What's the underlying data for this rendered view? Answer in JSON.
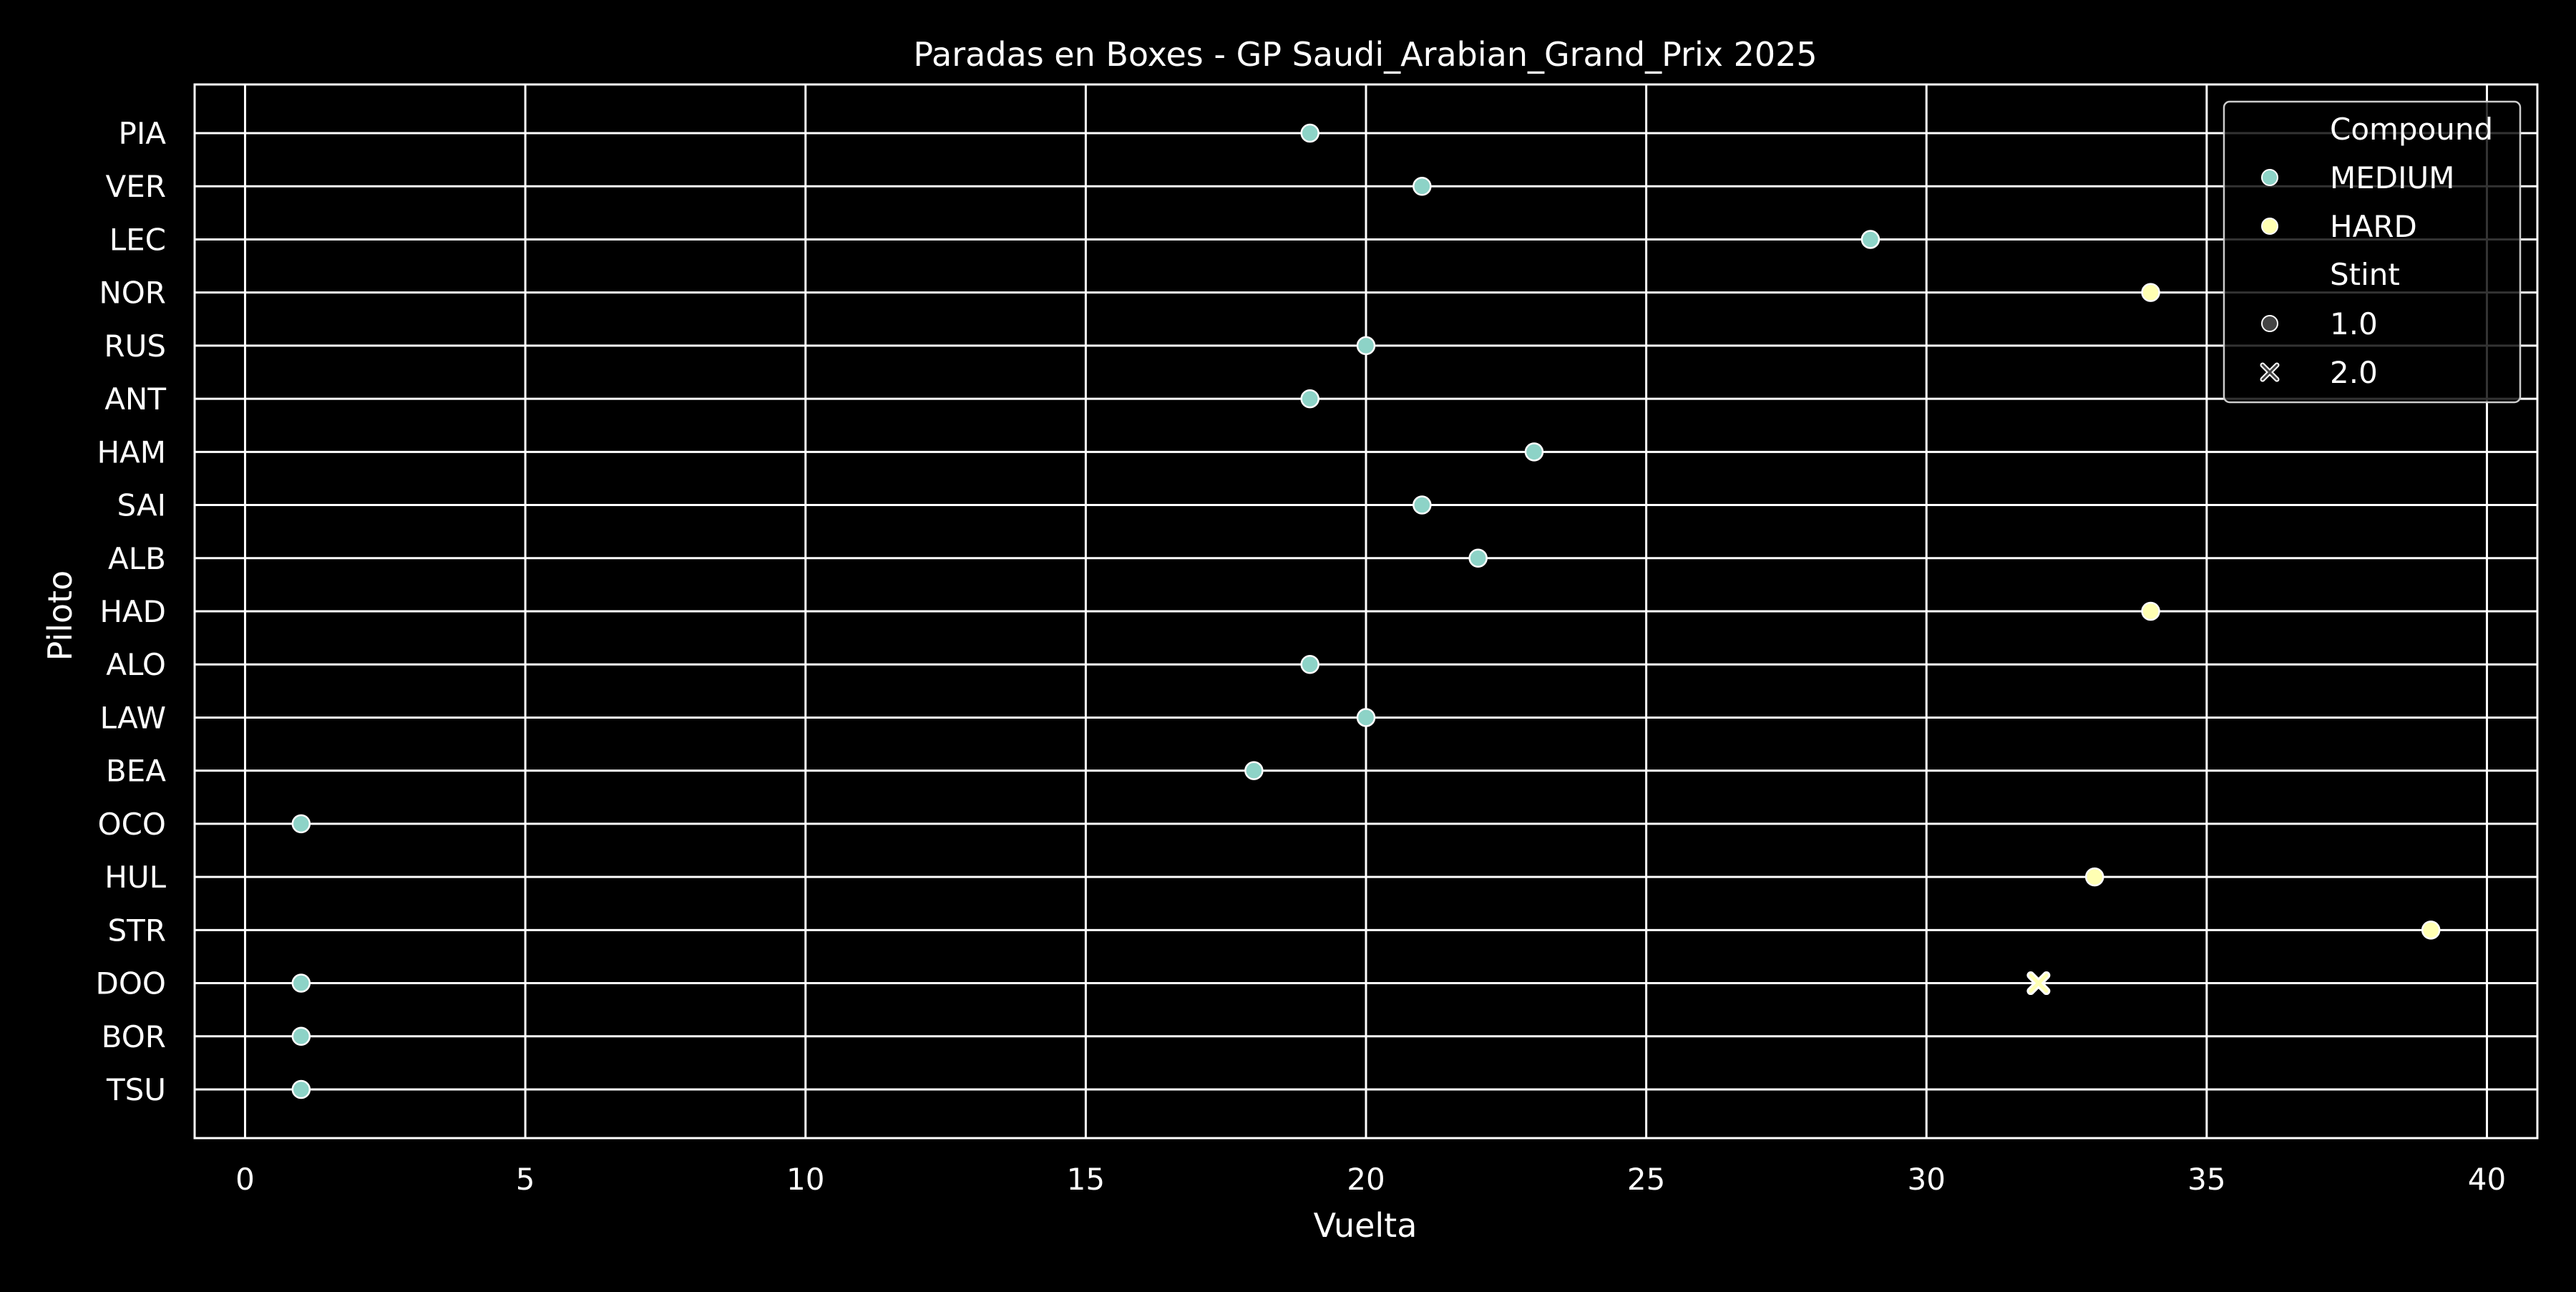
{
  "chart_data": {
    "type": "scatter",
    "title": "Paradas en Boxes - GP Saudi_Arabian_Grand_Prix 2025",
    "xlabel": "Vuelta",
    "ylabel": "Piloto",
    "xlim": [
      -0.9,
      40.9
    ],
    "xticks": [
      0,
      5,
      10,
      15,
      20,
      25,
      30,
      35,
      40
    ],
    "categories": [
      "PIA",
      "VER",
      "LEC",
      "NOR",
      "RUS",
      "ANT",
      "HAM",
      "SAI",
      "ALB",
      "HAD",
      "ALO",
      "LAW",
      "BEA",
      "OCO",
      "HUL",
      "STR",
      "DOO",
      "BOR",
      "TSU"
    ],
    "grid": true,
    "legend": {
      "position": "top-right",
      "hue_title": "Compound",
      "style_title": "Stint",
      "compounds": [
        {
          "label": "MEDIUM",
          "color": "#8dd3c7"
        },
        {
          "label": "HARD",
          "color": "#ffffb3"
        }
      ],
      "stints": [
        {
          "label": "1.0",
          "marker": "circle"
        },
        {
          "label": "2.0",
          "marker": "x"
        }
      ]
    },
    "points": [
      {
        "driver": "PIA",
        "lap": 19,
        "compound": "MEDIUM",
        "stint": 1.0
      },
      {
        "driver": "VER",
        "lap": 21,
        "compound": "MEDIUM",
        "stint": 1.0
      },
      {
        "driver": "LEC",
        "lap": 29,
        "compound": "MEDIUM",
        "stint": 1.0
      },
      {
        "driver": "NOR",
        "lap": 34,
        "compound": "HARD",
        "stint": 1.0
      },
      {
        "driver": "RUS",
        "lap": 20,
        "compound": "MEDIUM",
        "stint": 1.0
      },
      {
        "driver": "ANT",
        "lap": 19,
        "compound": "MEDIUM",
        "stint": 1.0
      },
      {
        "driver": "HAM",
        "lap": 23,
        "compound": "MEDIUM",
        "stint": 1.0
      },
      {
        "driver": "SAI",
        "lap": 21,
        "compound": "MEDIUM",
        "stint": 1.0
      },
      {
        "driver": "ALB",
        "lap": 22,
        "compound": "MEDIUM",
        "stint": 1.0
      },
      {
        "driver": "HAD",
        "lap": 34,
        "compound": "HARD",
        "stint": 1.0
      },
      {
        "driver": "ALO",
        "lap": 19,
        "compound": "MEDIUM",
        "stint": 1.0
      },
      {
        "driver": "LAW",
        "lap": 20,
        "compound": "MEDIUM",
        "stint": 1.0
      },
      {
        "driver": "BEA",
        "lap": 18,
        "compound": "MEDIUM",
        "stint": 1.0
      },
      {
        "driver": "OCO",
        "lap": 1,
        "compound": "MEDIUM",
        "stint": 1.0
      },
      {
        "driver": "HUL",
        "lap": 33,
        "compound": "HARD",
        "stint": 1.0
      },
      {
        "driver": "STR",
        "lap": 39,
        "compound": "HARD",
        "stint": 1.0
      },
      {
        "driver": "DOO",
        "lap": 1,
        "compound": "MEDIUM",
        "stint": 1.0
      },
      {
        "driver": "DOO",
        "lap": 32,
        "compound": "HARD",
        "stint": 2.0
      },
      {
        "driver": "BOR",
        "lap": 1,
        "compound": "MEDIUM",
        "stint": 1.0
      },
      {
        "driver": "TSU",
        "lap": 1,
        "compound": "MEDIUM",
        "stint": 1.0
      }
    ]
  }
}
